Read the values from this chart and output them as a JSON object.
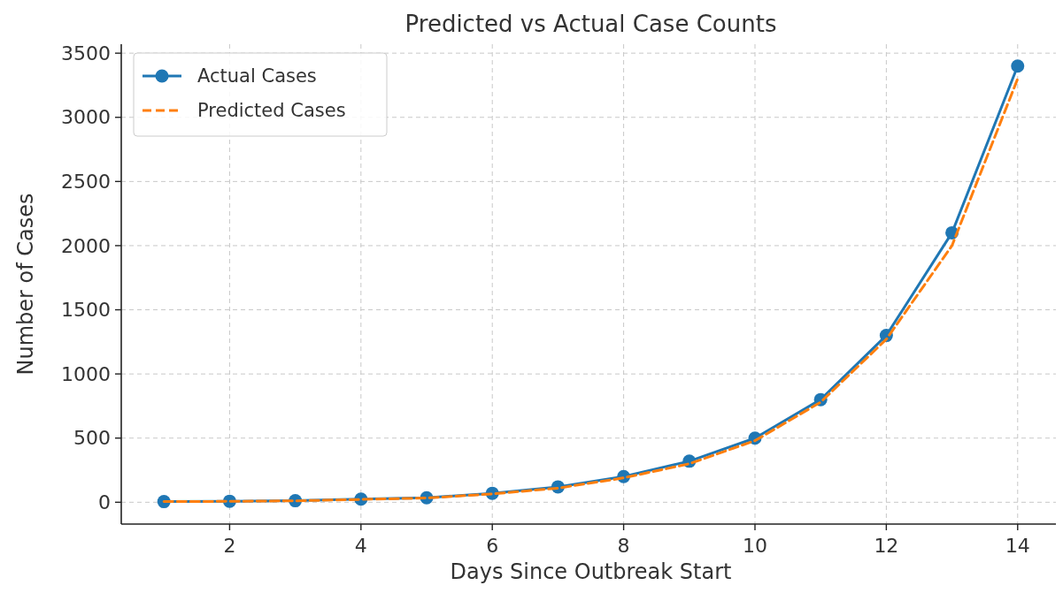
{
  "chart_data": {
    "type": "line",
    "title": "Predicted vs Actual Case Counts",
    "xlabel": "Days Since Outbreak Start",
    "ylabel": "Number of Cases",
    "x": [
      1,
      2,
      3,
      4,
      5,
      6,
      7,
      8,
      9,
      10,
      11,
      12,
      13,
      14
    ],
    "series": [
      {
        "name": "Actual Cases",
        "color": "#1f77b4",
        "marker": "circle",
        "line_style": "solid",
        "values": [
          5,
          8,
          12,
          25,
          35,
          70,
          120,
          200,
          320,
          500,
          800,
          1300,
          2100,
          3400
        ]
      },
      {
        "name": "Predicted Cases",
        "color": "#ff7f0e",
        "marker": "none",
        "line_style": "dashed",
        "values": [
          5,
          7,
          11,
          22,
          33,
          65,
          110,
          190,
          300,
          480,
          780,
          1270,
          2000,
          3300
        ]
      }
    ],
    "xlim": [
      0.35,
      14.65
    ],
    "ylim": [
      -170,
      3570
    ],
    "xticks": [
      2,
      4,
      6,
      8,
      10,
      12,
      14
    ],
    "yticks": [
      0,
      500,
      1000,
      1500,
      2000,
      2500,
      3000,
      3500
    ],
    "grid": true,
    "legend": "top left"
  }
}
